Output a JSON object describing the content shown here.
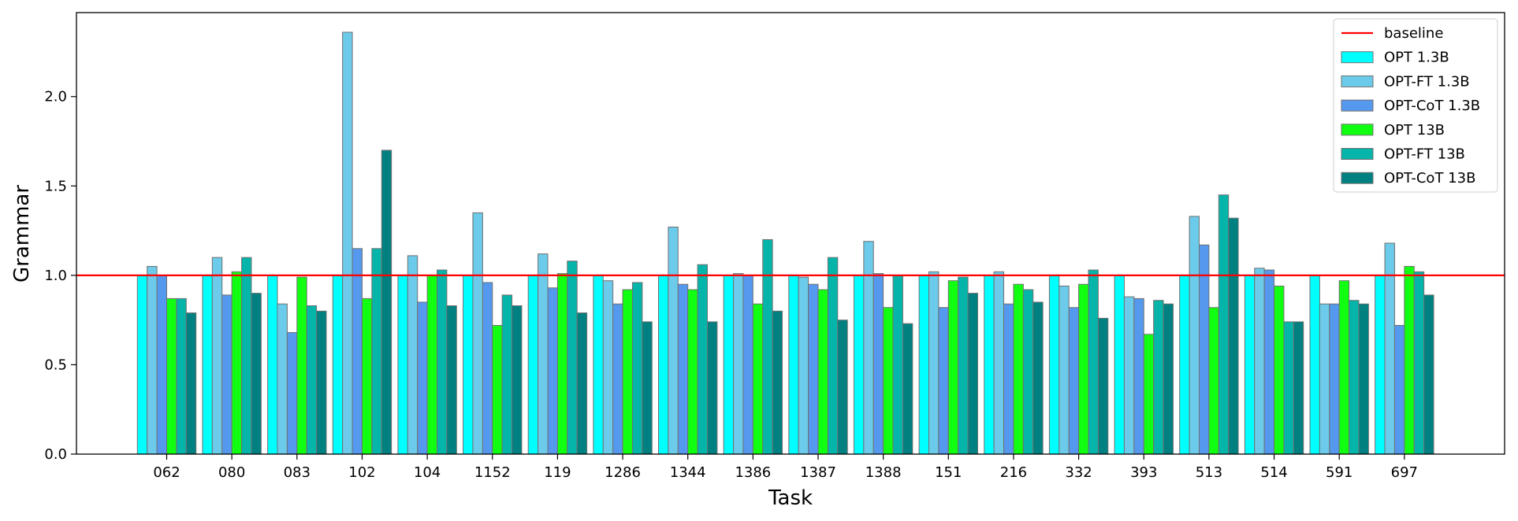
{
  "chart_data": {
    "type": "bar",
    "title": "",
    "xlabel": "Task",
    "ylabel": "Grammar",
    "ylim": [
      0,
      2.47
    ],
    "yticks": [
      "0.0",
      "0.5",
      "1.0",
      "1.5",
      "2.0"
    ],
    "grid": false,
    "legend_position": "top-right",
    "baseline": {
      "name": "baseline",
      "value": 1.0,
      "color": "#ff0000"
    },
    "categories": [
      "062",
      "080",
      "083",
      "102",
      "104",
      "1152",
      "119",
      "1286",
      "1344",
      "1386",
      "1387",
      "1388",
      "151",
      "216",
      "332",
      "393",
      "513",
      "514",
      "591",
      "697"
    ],
    "series": [
      {
        "name": "OPT 1.3B",
        "color": "#00ffff",
        "values": [
          1.0,
          1.0,
          1.0,
          1.0,
          1.0,
          1.0,
          1.0,
          1.0,
          1.0,
          1.0,
          1.0,
          1.0,
          1.0,
          1.0,
          1.0,
          1.0,
          1.0,
          1.0,
          1.0,
          1.0
        ]
      },
      {
        "name": "OPT-FT 1.3B",
        "color": "#6ccbea",
        "values": [
          1.05,
          1.1,
          0.84,
          2.36,
          1.11,
          1.35,
          1.12,
          0.97,
          1.27,
          1.01,
          0.99,
          1.19,
          1.02,
          1.02,
          0.94,
          0.88,
          1.33,
          1.04,
          0.84,
          1.18
        ]
      },
      {
        "name": "OPT-CoT 1.3B",
        "color": "#5599ee",
        "values": [
          1.0,
          0.89,
          0.68,
          1.15,
          0.85,
          0.96,
          0.93,
          0.84,
          0.95,
          1.0,
          0.95,
          1.01,
          0.82,
          0.84,
          0.82,
          0.87,
          1.17,
          1.03,
          0.84,
          0.72
        ]
      },
      {
        "name": "OPT 13B",
        "color": "#11ff11",
        "values": [
          0.87,
          1.02,
          0.99,
          0.87,
          1.0,
          0.72,
          1.01,
          0.92,
          0.92,
          0.84,
          0.92,
          0.82,
          0.97,
          0.95,
          0.95,
          0.67,
          0.82,
          0.94,
          0.97,
          1.05
        ]
      },
      {
        "name": "OPT-FT 13B",
        "color": "#06b5aa",
        "values": [
          0.87,
          1.1,
          0.83,
          1.15,
          1.03,
          0.89,
          1.08,
          0.96,
          1.06,
          1.2,
          1.1,
          1.0,
          0.99,
          0.92,
          1.03,
          0.86,
          1.45,
          0.74,
          0.86,
          1.02
        ]
      },
      {
        "name": "OPT-CoT 13B",
        "color": "#008080",
        "values": [
          0.79,
          0.9,
          0.8,
          1.7,
          0.83,
          0.83,
          0.79,
          0.74,
          0.74,
          0.8,
          0.75,
          0.73,
          0.9,
          0.85,
          0.76,
          0.84,
          1.32,
          0.74,
          0.84,
          0.89
        ]
      }
    ]
  }
}
